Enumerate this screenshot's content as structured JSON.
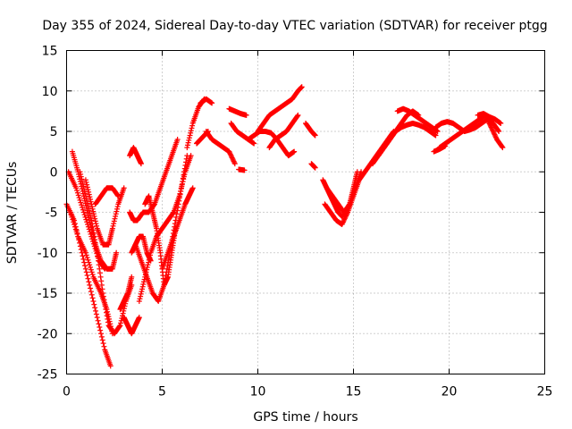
{
  "chart_data": {
    "type": "scatter",
    "title": "Day 355 of 2024, Sidereal Day-to-day VTEC variation (SDTVAR) for receiver ptgg",
    "xlabel": "GPS time / hours",
    "ylabel": "SDTVAR / TECUs",
    "xlim": [
      0,
      25
    ],
    "ylim": [
      -25,
      15
    ],
    "xticks": [
      "0",
      "5",
      "10",
      "15",
      "20",
      "25"
    ],
    "yticks": [
      "-25",
      "-20",
      "-15",
      "-10",
      "-5",
      "0",
      "5",
      "10",
      "15"
    ],
    "grid": true,
    "marker": "plus",
    "color": "#ff0000",
    "series": [
      {
        "x": [
          0.0,
          0.4,
          0.8,
          1.2,
          1.6,
          2.0,
          2.3
        ],
        "y": [
          -4,
          -6,
          -10,
          -14,
          -18,
          -22,
          -24
        ]
      },
      {
        "x": [
          0.2,
          0.6,
          1.0,
          1.4,
          1.8,
          2.1,
          2.4
        ],
        "y": [
          -5,
          -8,
          -10,
          -13,
          -15,
          -17,
          -20
        ]
      },
      {
        "x": [
          0.1,
          0.5,
          0.9,
          1.3,
          1.7,
          2.0
        ],
        "y": [
          0,
          -2,
          -5,
          -8,
          -11,
          -12
        ]
      },
      {
        "x": [
          0.3,
          0.6,
          0.9,
          1.2,
          1.5,
          1.8,
          2.1,
          2.4,
          2.6
        ],
        "y": [
          2.5,
          0,
          -3,
          -6,
          -9,
          -11,
          -12,
          -12,
          -10
        ]
      },
      {
        "x": [
          0.7,
          1.0,
          1.3,
          1.6,
          1.9,
          2.2,
          2.5,
          2.8,
          3.1,
          3.4
        ],
        "y": [
          0,
          -3,
          -6,
          -10,
          -15,
          -19,
          -20,
          -19,
          -16,
          -14
        ]
      },
      {
        "x": [
          1.0,
          1.3,
          1.6,
          1.9,
          2.2,
          2.4,
          2.7,
          3.0
        ],
        "y": [
          -1,
          -4,
          -7,
          -9,
          -9,
          -7,
          -4,
          -2
        ]
      },
      {
        "x": [
          1.5,
          1.8,
          2.1,
          2.4,
          2.7
        ],
        "y": [
          -4,
          -3,
          -2,
          -2,
          -3
        ]
      },
      {
        "x": [
          3.3,
          3.5,
          3.7,
          3.9
        ],
        "y": [
          2,
          3,
          2,
          1
        ]
      },
      {
        "x": [
          3.3,
          3.5,
          3.7,
          4.0,
          4.3,
          4.6,
          4.9,
          5.2,
          5.5,
          5.8
        ],
        "y": [
          -5,
          -6,
          -6,
          -5,
          -5,
          -4,
          -2,
          0,
          2,
          4
        ]
      },
      {
        "x": [
          3.4,
          3.6,
          3.8,
          4.0,
          4.2,
          4.4
        ],
        "y": [
          -10,
          -9,
          -8,
          -8,
          -10,
          -11
        ]
      },
      {
        "x": [
          3.6,
          3.9,
          4.2,
          4.5,
          4.8,
          5.1,
          5.4,
          5.7,
          6.0,
          6.3
        ],
        "y": [
          -9,
          -11,
          -13,
          -15,
          -16,
          -14,
          -10,
          -6,
          -2,
          2
        ]
      },
      {
        "x": [
          3.8,
          4.1,
          4.4,
          4.7,
          5.0,
          5.3,
          5.6,
          5.9,
          6.2,
          6.5
        ],
        "y": [
          -16,
          -13,
          -10,
          -8,
          -7,
          -6,
          -5,
          -3,
          0,
          2
        ]
      },
      {
        "x": [
          4.1,
          4.3,
          4.5,
          4.7,
          4.9,
          5.1,
          5.3,
          5.5,
          5.7
        ],
        "y": [
          -4,
          -3,
          -5,
          -7,
          -10,
          -14,
          -13,
          -10,
          -7
        ]
      },
      {
        "x": [
          5.0,
          5.3,
          5.6,
          5.9,
          6.2,
          6.4,
          6.6
        ],
        "y": [
          -12,
          -10,
          -8,
          -6,
          -4,
          -3,
          -2
        ]
      },
      {
        "x": [
          3.0,
          3.2,
          3.4,
          3.6,
          3.8
        ],
        "y": [
          -18,
          -19,
          -20,
          -19,
          -18
        ]
      },
      {
        "x": [
          2.8,
          3.0,
          3.2,
          3.4
        ],
        "y": [
          -17,
          -16,
          -15,
          -13
        ]
      },
      {
        "x": [
          6.3,
          6.6,
          6.9,
          7.2
        ],
        "y": [
          3,
          6,
          8,
          9
        ]
      },
      {
        "x": [
          6.8,
          7.0,
          7.2,
          7.4
        ],
        "y": [
          3.5,
          4,
          4.5,
          5
        ]
      },
      {
        "x": [
          7.3,
          7.6,
          7.9,
          8.2,
          8.5,
          8.8
        ],
        "y": [
          5,
          4,
          3.5,
          3,
          2.5,
          1
        ]
      },
      {
        "x": [
          7.0,
          7.3,
          7.6
        ],
        "y": [
          8.5,
          9,
          8.5
        ]
      },
      {
        "x": [
          8.5,
          8.8,
          9.1,
          9.4
        ],
        "y": [
          7.8,
          7.5,
          7.2,
          7.0
        ]
      },
      {
        "x": [
          8.6,
          8.9,
          9.2,
          9.5,
          9.8
        ],
        "y": [
          6,
          5,
          4.5,
          4,
          3.5
        ]
      },
      {
        "x": [
          9.0,
          9.3
        ],
        "y": [
          0.3,
          0.2
        ]
      },
      {
        "x": [
          9.5,
          9.8,
          10.1,
          10.4,
          10.7,
          11.0
        ],
        "y": [
          4,
          4.5,
          5,
          5,
          4.8,
          4
        ]
      },
      {
        "x": [
          10.0,
          10.3,
          10.6,
          10.9,
          11.2,
          11.5,
          11.8,
          12.1,
          12.3
        ],
        "y": [
          5,
          6,
          7,
          7.5,
          8,
          8.5,
          9,
          10,
          10.5
        ]
      },
      {
        "x": [
          10.6,
          10.9,
          11.2,
          11.5,
          11.8,
          12.1
        ],
        "y": [
          3,
          4,
          4.5,
          5,
          6,
          7
        ]
      },
      {
        "x": [
          11.0,
          11.3,
          11.6,
          11.9
        ],
        "y": [
          4,
          3,
          2,
          2.5
        ]
      },
      {
        "x": [
          12.5,
          12.8,
          13.0
        ],
        "y": [
          6,
          5,
          4.5
        ]
      },
      {
        "x": [
          12.8,
          13.0
        ],
        "y": [
          1,
          0.5
        ]
      },
      {
        "x": [
          13.4,
          13.6,
          13.8,
          14.0,
          14.2,
          14.4,
          14.6,
          14.8,
          15.0,
          15.2
        ],
        "y": [
          -1,
          -2,
          -3,
          -4,
          -5,
          -5.5,
          -5,
          -4,
          -2,
          0
        ]
      },
      {
        "x": [
          13.5,
          13.8,
          14.1,
          14.4,
          14.7,
          15.0,
          15.3
        ],
        "y": [
          -4,
          -5,
          -6,
          -6.5,
          -5,
          -3,
          -1
        ]
      },
      {
        "x": [
          13.6,
          13.9,
          14.2,
          14.5,
          14.8,
          15.1,
          15.4
        ],
        "y": [
          -2,
          -3,
          -4,
          -5,
          -4,
          -2,
          0
        ]
      },
      {
        "x": [
          15.3,
          15.6,
          15.9,
          16.2,
          16.5,
          16.8,
          17.1
        ],
        "y": [
          -1,
          0,
          1,
          2,
          3,
          4,
          5
        ]
      },
      {
        "x": [
          16.0,
          16.3,
          16.6,
          16.9,
          17.2,
          17.5,
          17.8,
          18.1,
          18.4
        ],
        "y": [
          1,
          2,
          3,
          4,
          5,
          6,
          7,
          7.5,
          7
        ]
      },
      {
        "x": [
          16.3,
          16.6,
          16.9,
          17.2,
          17.5,
          17.8,
          18.1,
          18.4,
          18.7,
          19.0,
          19.3
        ],
        "y": [
          2,
          3,
          4,
          5,
          5.5,
          5.8,
          6,
          5.8,
          5.5,
          5,
          4.5
        ]
      },
      {
        "x": [
          17.3,
          17.6,
          17.9,
          18.2,
          18.5,
          18.8,
          19.1,
          19.4
        ],
        "y": [
          7.5,
          7.8,
          7.5,
          7,
          6.5,
          6,
          5.5,
          5
        ]
      },
      {
        "x": [
          19.3,
          19.6,
          19.9,
          20.2,
          20.5,
          20.8,
          21.1,
          21.4,
          21.7,
          22.0,
          22.3,
          22.6
        ],
        "y": [
          5.5,
          6,
          6.2,
          6,
          5.5,
          5,
          5.2,
          5.5,
          6,
          6.5,
          6,
          5
        ]
      },
      {
        "x": [
          19.5,
          19.8,
          20.1,
          20.4,
          20.7,
          21.0,
          21.3,
          21.6,
          21.9,
          22.2,
          22.5,
          22.8
        ],
        "y": [
          3,
          3.5,
          4,
          4.5,
          5,
          5.5,
          6,
          6.5,
          7,
          5.5,
          4,
          3
        ]
      },
      {
        "x": [
          21.5,
          21.8,
          22.1,
          22.4,
          22.7
        ],
        "y": [
          7,
          7.2,
          6.8,
          6.5,
          6
        ]
      },
      {
        "x": [
          19.2,
          19.5,
          19.8
        ],
        "y": [
          2.5,
          2.8,
          3.2
        ]
      }
    ]
  }
}
